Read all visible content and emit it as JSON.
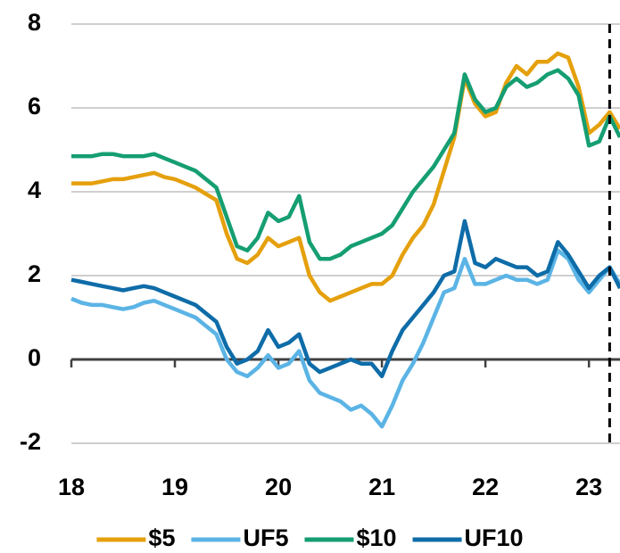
{
  "chart_data": {
    "type": "line",
    "x": [
      18.0,
      18.1,
      18.2,
      18.3,
      18.4,
      18.5,
      18.6,
      18.7,
      18.8,
      18.9,
      19.0,
      19.1,
      19.2,
      19.3,
      19.4,
      19.5,
      19.6,
      19.7,
      19.8,
      19.9,
      20.0,
      20.1,
      20.2,
      20.3,
      20.4,
      20.5,
      20.6,
      20.7,
      20.8,
      20.9,
      21.0,
      21.1,
      21.2,
      21.3,
      21.4,
      21.5,
      21.6,
      21.7,
      21.8,
      21.9,
      22.0,
      22.1,
      22.2,
      22.3,
      22.4,
      22.5,
      22.6,
      22.7,
      22.8,
      22.9,
      23.0,
      23.1,
      23.2,
      23.3
    ],
    "series": [
      {
        "name": "$5",
        "color": "#e5a00d",
        "values": [
          4.2,
          4.2,
          4.2,
          4.25,
          4.3,
          4.3,
          4.35,
          4.4,
          4.45,
          4.35,
          4.3,
          4.2,
          4.1,
          3.95,
          3.8,
          3.0,
          2.4,
          2.3,
          2.5,
          2.9,
          2.7,
          2.8,
          2.9,
          2.0,
          1.6,
          1.4,
          1.5,
          1.6,
          1.7,
          1.8,
          1.8,
          2.0,
          2.5,
          2.9,
          3.2,
          3.7,
          4.5,
          5.3,
          6.7,
          6.1,
          5.8,
          5.9,
          6.6,
          7.0,
          6.8,
          7.1,
          7.1,
          7.3,
          7.2,
          6.5,
          5.4,
          5.6,
          5.9,
          5.5
        ]
      },
      {
        "name": "UF5",
        "color": "#5bb4e5",
        "values": [
          1.45,
          1.35,
          1.3,
          1.3,
          1.25,
          1.2,
          1.25,
          1.35,
          1.4,
          1.3,
          1.2,
          1.1,
          1.0,
          0.8,
          0.6,
          0.0,
          -0.3,
          -0.4,
          -0.2,
          0.1,
          -0.2,
          -0.1,
          0.2,
          -0.5,
          -0.8,
          -0.9,
          -1.0,
          -1.2,
          -1.1,
          -1.3,
          -1.6,
          -1.1,
          -0.5,
          -0.1,
          0.4,
          1.0,
          1.6,
          1.7,
          2.4,
          1.8,
          1.8,
          1.9,
          2.0,
          1.9,
          1.9,
          1.8,
          1.9,
          2.6,
          2.4,
          1.9,
          1.6,
          1.9,
          2.2,
          1.8
        ]
      },
      {
        "name": "$10",
        "color": "#159e72",
        "values": [
          4.85,
          4.85,
          4.85,
          4.9,
          4.9,
          4.85,
          4.85,
          4.85,
          4.9,
          4.8,
          4.7,
          4.6,
          4.5,
          4.3,
          4.1,
          3.4,
          2.7,
          2.6,
          2.9,
          3.5,
          3.3,
          3.4,
          3.9,
          2.8,
          2.4,
          2.4,
          2.5,
          2.7,
          2.8,
          2.9,
          3.0,
          3.2,
          3.6,
          4.0,
          4.3,
          4.6,
          5.0,
          5.4,
          6.8,
          6.2,
          5.9,
          6.0,
          6.5,
          6.7,
          6.5,
          6.6,
          6.8,
          6.9,
          6.7,
          6.3,
          5.1,
          5.2,
          5.8,
          5.3
        ]
      },
      {
        "name": "UF10",
        "color": "#0e6ca8",
        "values": [
          1.9,
          1.85,
          1.8,
          1.75,
          1.7,
          1.65,
          1.7,
          1.75,
          1.7,
          1.6,
          1.5,
          1.4,
          1.3,
          1.1,
          0.9,
          0.3,
          -0.1,
          0.0,
          0.2,
          0.7,
          0.3,
          0.4,
          0.6,
          -0.1,
          -0.3,
          -0.2,
          -0.1,
          0.0,
          -0.1,
          -0.1,
          -0.4,
          0.2,
          0.7,
          1.0,
          1.3,
          1.6,
          2.0,
          2.1,
          3.3,
          2.3,
          2.2,
          2.4,
          2.3,
          2.2,
          2.2,
          2.0,
          2.1,
          2.8,
          2.5,
          2.1,
          1.7,
          2.0,
          2.2,
          1.7
        ]
      }
    ],
    "xlim": [
      18,
      23.3
    ],
    "xticks": [
      18,
      19,
      20,
      21,
      22,
      23
    ],
    "ylim": [
      -2,
      8
    ],
    "yticks": [
      -2,
      0,
      2,
      4,
      6,
      8
    ],
    "grid": true,
    "vline": 23.2,
    "legend": "bottom"
  }
}
